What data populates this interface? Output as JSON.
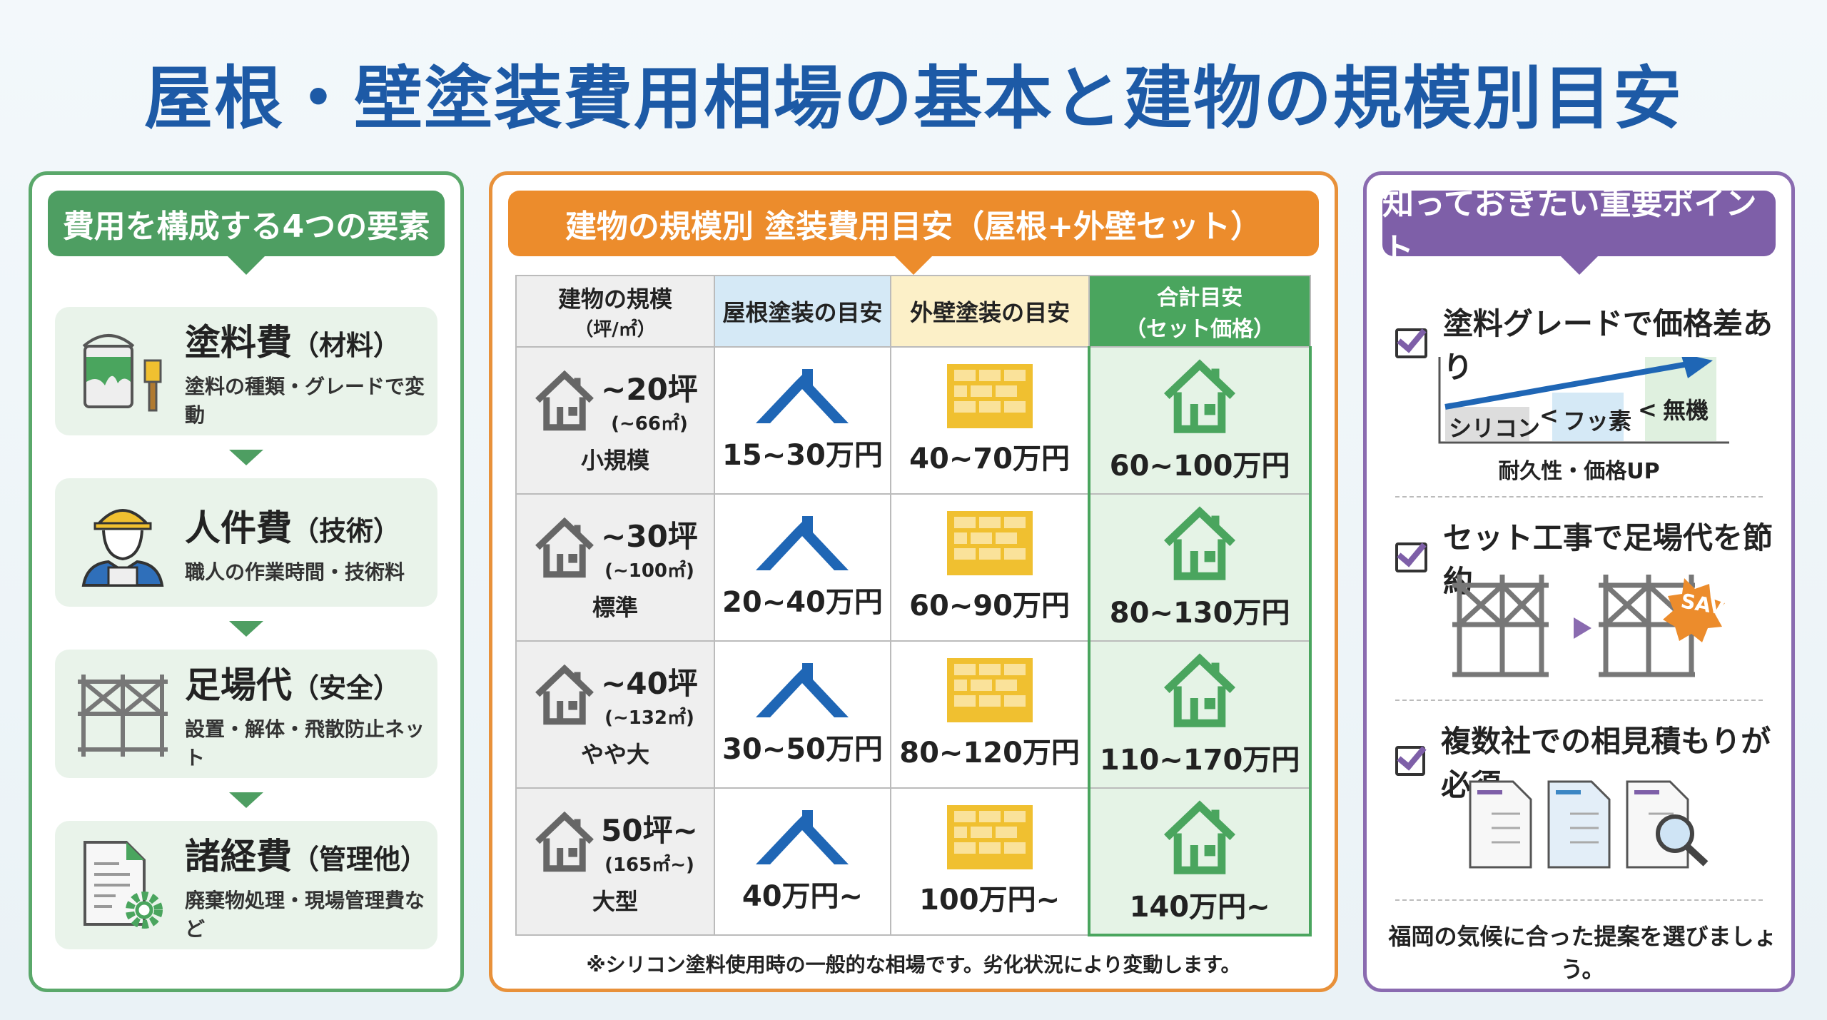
{
  "title": "屋根・壁塗装費用相場の基本と建物の規模別目安",
  "left": {
    "header": "費用を構成する4つの要素",
    "items": [
      {
        "name": "塗料費",
        "sub": "（材料）",
        "desc": "塗料の種類・グレードで変動",
        "icon": "paint-bucket-brush-icon"
      },
      {
        "name": "人件費",
        "sub": "（技術）",
        "desc": "職人の作業時間・技術料",
        "icon": "worker-helmet-icon"
      },
      {
        "name": "足場代",
        "sub": "（安全）",
        "desc": "設置・解体・飛散防止ネット",
        "icon": "scaffold-icon"
      },
      {
        "name": "諸経費",
        "sub": "（管理他）",
        "desc": "廃棄物処理・現場管理費など",
        "icon": "document-gear-icon"
      }
    ]
  },
  "mid": {
    "header": "建物の規模別 塗装費用目安（屋根+外壁セット）",
    "columns": [
      "建物の規模",
      "（坪/㎡）",
      "屋根塗装の目安",
      "外壁塗装の目安",
      "合計目安",
      "（セット価格）"
    ],
    "rows": [
      {
        "tsubo": "~20坪",
        "sqm": "(~66㎡)",
        "label": "小規模",
        "roof": "15~30万円",
        "wall": "40~70万円",
        "total": "60~100万円"
      },
      {
        "tsubo": "~30坪",
        "sqm": "(~100㎡)",
        "label": "標準",
        "roof": "20~40万円",
        "wall": "60~90万円",
        "total": "80~130万円"
      },
      {
        "tsubo": "~40坪",
        "sqm": "(~132㎡)",
        "label": "やや大",
        "roof": "30~50万円",
        "wall": "80~120万円",
        "total": "110~170万円"
      },
      {
        "tsubo": "50坪~",
        "sqm": "(165㎡~)",
        "label": "大型",
        "roof": "40万円~",
        "wall": "100万円~",
        "total": "140万円~"
      }
    ],
    "note": "※シリコン塗料使用時の一般的な相場です。劣化状況により変動します。",
    "colors": {
      "roof": "#1f66b5",
      "wall": "#f0c030",
      "total": "#4aa55e"
    }
  },
  "right": {
    "header": "知っておきたい重要ポイント",
    "points": [
      "塗料グレードで価格差あり",
      "セット工事で足場代を節約",
      "複数社での相見積もりが必須"
    ],
    "grades": [
      "シリコン",
      "<",
      "フッ素",
      "<",
      "無機"
    ],
    "grade_caption": "耐久性・価格UP",
    "save_badge": "SAVE!",
    "footer": "福岡の気候に合った提案を選びましょう。"
  }
}
